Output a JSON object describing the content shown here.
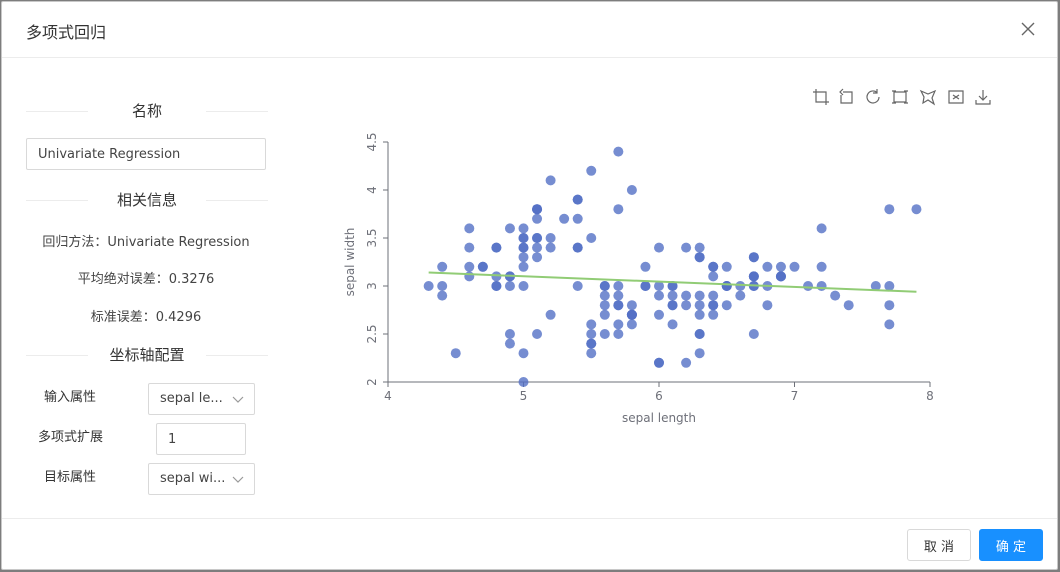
{
  "dialog": {
    "title": "多项式回归",
    "close_icon": "close-icon"
  },
  "left": {
    "name_section": "名称",
    "name_value": "Univariate Regression",
    "info_section": "相关信息",
    "method": "回归方法：Univariate Regression",
    "mae": "平均绝对误差：0.3276",
    "std_err": "标准误差：0.4296",
    "axis_section": "坐标轴配置",
    "input_attr_label": "输入属性",
    "input_attr_value": "sepal le...",
    "poly_label": "多项式扩展",
    "poly_value": "1",
    "target_attr_label": "目标属性",
    "target_attr_value": "sepal wi..."
  },
  "toolbar": {
    "icons": [
      "crop-icon",
      "rotate-back-icon",
      "refresh-icon",
      "rect-select-icon",
      "lasso-select-icon",
      "clear-select-icon",
      "download-icon"
    ]
  },
  "chart_data": {
    "type": "scatter",
    "xlabel": "sepal length",
    "ylabel": "sepal width",
    "xlim": [
      4,
      8
    ],
    "ylim": [
      2,
      4.5
    ],
    "x_ticks": [
      "4",
      "5",
      "6",
      "7",
      "8"
    ],
    "y_ticks": [
      "2",
      "2.5",
      "3",
      "3.5",
      "4",
      "4.5"
    ],
    "point_color": "#5470c6",
    "line_color": "#91cc75",
    "regression_line": [
      [
        4.3,
        3.14
      ],
      [
        7.9,
        2.94
      ]
    ],
    "points": [
      [
        5.1,
        3.5
      ],
      [
        4.9,
        3.0
      ],
      [
        4.7,
        3.2
      ],
      [
        4.6,
        3.1
      ],
      [
        5.0,
        3.6
      ],
      [
        5.4,
        3.9
      ],
      [
        4.6,
        3.4
      ],
      [
        5.0,
        3.4
      ],
      [
        4.4,
        2.9
      ],
      [
        4.9,
        3.1
      ],
      [
        5.4,
        3.7
      ],
      [
        4.8,
        3.4
      ],
      [
        4.8,
        3.0
      ],
      [
        4.3,
        3.0
      ],
      [
        5.8,
        4.0
      ],
      [
        5.7,
        4.4
      ],
      [
        5.4,
        3.9
      ],
      [
        5.1,
        3.5
      ],
      [
        5.7,
        3.8
      ],
      [
        5.1,
        3.8
      ],
      [
        5.4,
        3.4
      ],
      [
        5.1,
        3.7
      ],
      [
        4.6,
        3.6
      ],
      [
        5.1,
        3.3
      ],
      [
        4.8,
        3.4
      ],
      [
        5.0,
        3.0
      ],
      [
        5.0,
        3.4
      ],
      [
        5.2,
        3.5
      ],
      [
        5.2,
        3.4
      ],
      [
        4.7,
        3.2
      ],
      [
        4.8,
        3.1
      ],
      [
        5.4,
        3.4
      ],
      [
        5.2,
        4.1
      ],
      [
        5.5,
        4.2
      ],
      [
        4.9,
        3.1
      ],
      [
        5.0,
        3.2
      ],
      [
        5.5,
        3.5
      ],
      [
        4.9,
        3.6
      ],
      [
        4.4,
        3.0
      ],
      [
        5.1,
        3.4
      ],
      [
        5.0,
        3.5
      ],
      [
        4.5,
        2.3
      ],
      [
        4.4,
        3.2
      ],
      [
        5.0,
        3.5
      ],
      [
        5.1,
        3.8
      ],
      [
        4.8,
        3.0
      ],
      [
        5.1,
        3.8
      ],
      [
        4.6,
        3.2
      ],
      [
        5.3,
        3.7
      ],
      [
        5.0,
        3.3
      ],
      [
        7.0,
        3.2
      ],
      [
        6.4,
        3.2
      ],
      [
        6.9,
        3.1
      ],
      [
        5.5,
        2.3
      ],
      [
        6.5,
        2.8
      ],
      [
        5.7,
        2.8
      ],
      [
        6.3,
        3.3
      ],
      [
        4.9,
        2.4
      ],
      [
        6.6,
        2.9
      ],
      [
        5.2,
        2.7
      ],
      [
        5.0,
        2.0
      ],
      [
        5.9,
        3.0
      ],
      [
        6.0,
        2.2
      ],
      [
        6.1,
        2.9
      ],
      [
        5.6,
        2.9
      ],
      [
        6.7,
        3.1
      ],
      [
        5.6,
        3.0
      ],
      [
        5.8,
        2.7
      ],
      [
        6.2,
        2.2
      ],
      [
        5.6,
        2.5
      ],
      [
        5.9,
        3.2
      ],
      [
        6.1,
        2.8
      ],
      [
        6.3,
        2.5
      ],
      [
        6.1,
        2.8
      ],
      [
        6.4,
        2.9
      ],
      [
        6.6,
        3.0
      ],
      [
        6.8,
        2.8
      ],
      [
        6.7,
        3.0
      ],
      [
        6.0,
        2.9
      ],
      [
        5.7,
        2.6
      ],
      [
        5.5,
        2.4
      ],
      [
        5.5,
        2.4
      ],
      [
        5.8,
        2.7
      ],
      [
        6.0,
        2.7
      ],
      [
        5.4,
        3.0
      ],
      [
        6.0,
        3.4
      ],
      [
        6.7,
        3.1
      ],
      [
        6.3,
        2.3
      ],
      [
        5.6,
        3.0
      ],
      [
        5.5,
        2.5
      ],
      [
        5.5,
        2.6
      ],
      [
        6.1,
        3.0
      ],
      [
        5.8,
        2.6
      ],
      [
        5.0,
        2.3
      ],
      [
        5.6,
        2.7
      ],
      [
        5.7,
        3.0
      ],
      [
        5.7,
        2.9
      ],
      [
        6.2,
        2.9
      ],
      [
        5.1,
        2.5
      ],
      [
        5.7,
        2.8
      ],
      [
        6.3,
        3.3
      ],
      [
        5.8,
        2.7
      ],
      [
        7.1,
        3.0
      ],
      [
        6.3,
        2.9
      ],
      [
        6.5,
        3.0
      ],
      [
        7.6,
        3.0
      ],
      [
        4.9,
        2.5
      ],
      [
        7.3,
        2.9
      ],
      [
        6.7,
        2.5
      ],
      [
        7.2,
        3.6
      ],
      [
        6.5,
        3.2
      ],
      [
        6.4,
        2.7
      ],
      [
        6.8,
        3.0
      ],
      [
        5.7,
        2.5
      ],
      [
        5.8,
        2.8
      ],
      [
        6.4,
        3.2
      ],
      [
        6.5,
        3.0
      ],
      [
        7.7,
        3.8
      ],
      [
        7.7,
        2.6
      ],
      [
        6.0,
        2.2
      ],
      [
        6.9,
        3.2
      ],
      [
        5.6,
        2.8
      ],
      [
        7.7,
        2.8
      ],
      [
        6.3,
        2.7
      ],
      [
        6.7,
        3.3
      ],
      [
        7.2,
        3.2
      ],
      [
        6.2,
        2.8
      ],
      [
        6.1,
        3.0
      ],
      [
        6.4,
        2.8
      ],
      [
        7.2,
        3.0
      ],
      [
        7.4,
        2.8
      ],
      [
        7.9,
        3.8
      ],
      [
        6.4,
        2.8
      ],
      [
        6.3,
        2.8
      ],
      [
        6.1,
        2.6
      ],
      [
        7.7,
        3.0
      ],
      [
        6.3,
        3.4
      ],
      [
        6.4,
        3.1
      ],
      [
        6.0,
        3.0
      ],
      [
        6.9,
        3.1
      ],
      [
        6.7,
        3.1
      ],
      [
        6.9,
        3.1
      ],
      [
        5.8,
        2.7
      ],
      [
        6.8,
        3.2
      ],
      [
        6.7,
        3.3
      ],
      [
        6.7,
        3.0
      ],
      [
        6.3,
        2.5
      ],
      [
        6.5,
        3.0
      ],
      [
        6.2,
        3.4
      ],
      [
        5.9,
        3.0
      ]
    ]
  },
  "footer": {
    "cancel": "取 消",
    "ok": "确 定"
  }
}
